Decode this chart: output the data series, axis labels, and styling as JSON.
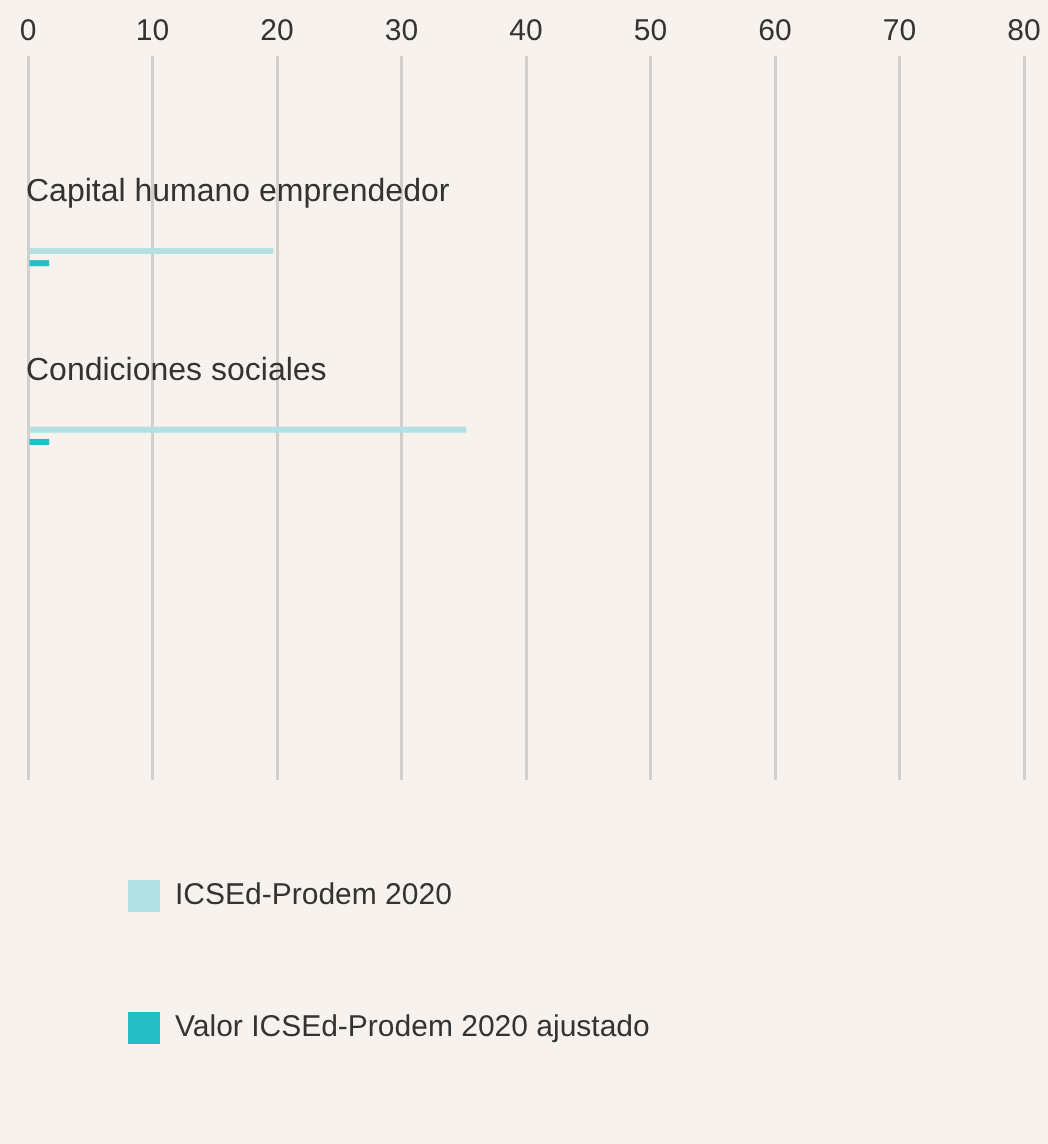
{
  "chart_data": {
    "type": "bar",
    "orientation": "horizontal",
    "categories": [
      "Capital humano emprendedor",
      "Condiciones sociales"
    ],
    "series": [
      {
        "name": "ICSEd-Prodem 2020",
        "color": "#b2e0e3",
        "values": [
          19.7,
          35.2
        ]
      },
      {
        "name": "Valor ICSEd-Prodem 2020 ajustado",
        "color": "#23bfc4",
        "values": [
          1.7,
          1.7
        ]
      }
    ],
    "xlim": [
      0,
      80
    ],
    "xticks": [
      0,
      10,
      20,
      30,
      40,
      50,
      60,
      70,
      80
    ],
    "grid": "x",
    "legend": "bottom"
  }
}
